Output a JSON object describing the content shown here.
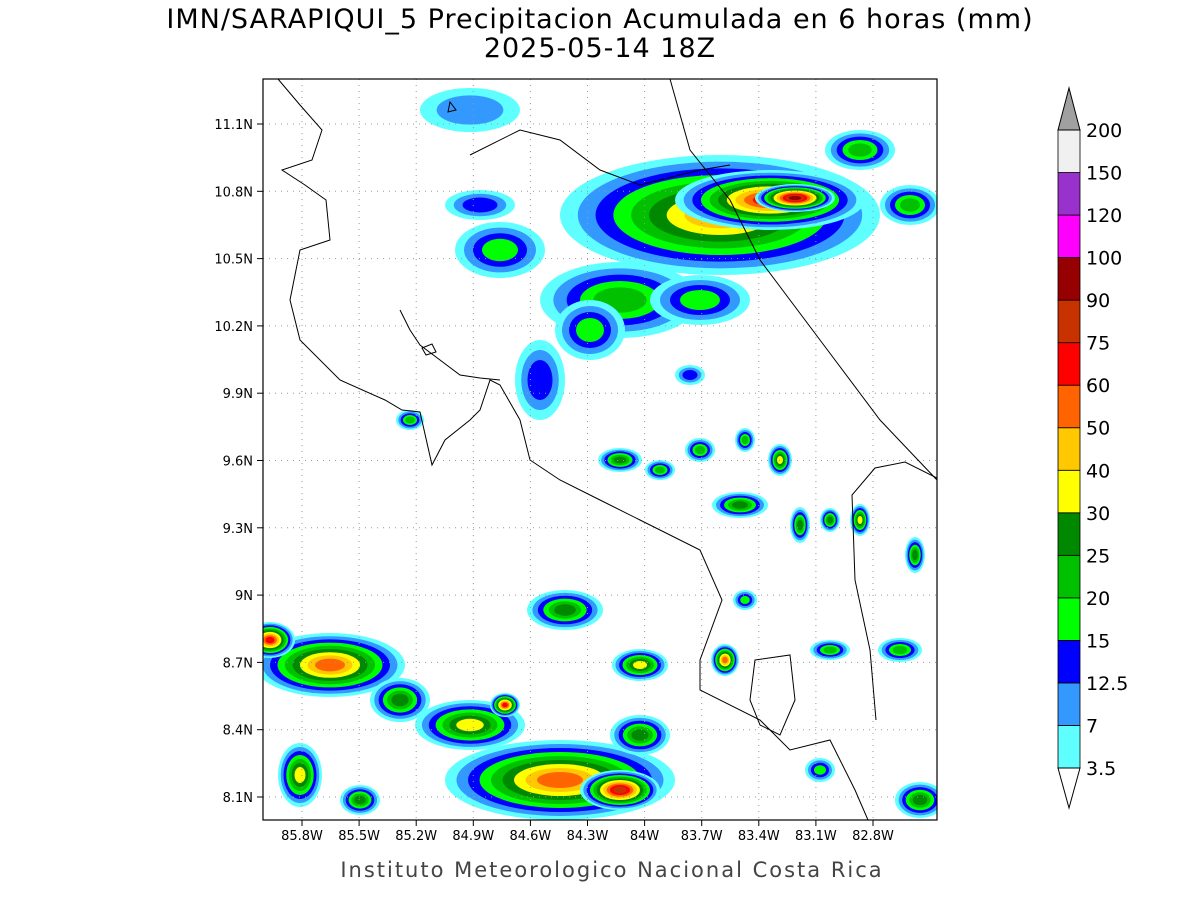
{
  "title": "IMN/SARAPIQUI_5 Precipitacion Acumulada en 6 horas (mm)",
  "subtitle": "2025-05-14 18Z",
  "map": {
    "lon_ticks": [
      "85.8W",
      "85.5W",
      "85.2W",
      "84.9W",
      "84.6W",
      "84.3W",
      "84W",
      "83.7W",
      "83.4W",
      "83.1W",
      "82.8W"
    ],
    "lat_ticks": [
      "8.1N",
      "8.4N",
      "8.7N",
      "9N",
      "9.3N",
      "9.6N",
      "9.9N",
      "10.2N",
      "10.5N",
      "10.8N",
      "11.1N"
    ]
  },
  "colorbar": {
    "levels": [
      3.5,
      7,
      12.5,
      15,
      20,
      25,
      30,
      40,
      50,
      60,
      75,
      90,
      100,
      120,
      150,
      200
    ],
    "colors": [
      "#60ffff",
      "#3399ff",
      "#0000ff",
      "#00ff00",
      "#00c000",
      "#008800",
      "#ffff00",
      "#ffc800",
      "#ff6400",
      "#ff0000",
      "#c83200",
      "#960000",
      "#ff00ff",
      "#9932cc",
      "#f0f0f0"
    ],
    "under_color": "#ffffff",
    "over_color": "#a0a0a0"
  },
  "footer": "Instituto Meteorologico Nacional Costa Rica"
}
